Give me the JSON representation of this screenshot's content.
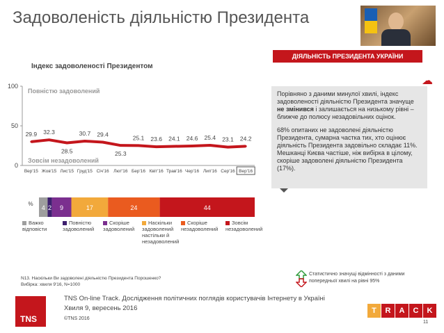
{
  "title": "Задоволеність діяльністю Президента",
  "banner": "ДІЯЛЬНІСТЬ ПРЕЗИДЕНТА УКРАЇНИ",
  "chart_data": [
    {
      "type": "line",
      "title": "Індекс задоволеності Президентом",
      "top_label": "Повністю задоволений",
      "bottom_label": "Зовсім незадоволений",
      "ylim": [
        0,
        100
      ],
      "yticks": [
        "100",
        "50",
        "0"
      ],
      "categories": [
        "Вер'15",
        "Жов'15",
        "Лис'15",
        "Груд'15",
        "Січ'16",
        "Лют'16",
        "Бер'16",
        "Квіт'16",
        "Трав'16",
        "Чер'16",
        "Лип'16",
        "Сер'16",
        "Вер'16"
      ],
      "values": [
        29.9,
        32.3,
        28.5,
        30.7,
        29.4,
        25.3,
        25.1,
        23.6,
        24.1,
        24.6,
        25.4,
        23.1,
        24.2
      ],
      "labels": [
        "29.9",
        "32.3",
        "28.5",
        "30.7",
        "29.4",
        "25.3",
        "25.1",
        "23.6",
        "24.1",
        "24.6",
        "25.4",
        "23.1",
        "24.2"
      ],
      "highlight_category": "Вер'16",
      "line_color": "#c4161c"
    },
    {
      "type": "bar",
      "unit": "%",
      "segments": [
        {
          "name": "Важко відповісти",
          "value": 4,
          "label": "4",
          "color": "#9e9e9e"
        },
        {
          "name": "Повністю задоволений",
          "value": 2,
          "label": "2",
          "color": "#3d1f6e"
        },
        {
          "name": "Скоріше задоволений",
          "value": 9,
          "label": "9",
          "color": "#7b2f8f"
        },
        {
          "name": "Наскільки задоволений настільки й незадоволений",
          "value": 17,
          "label": "17",
          "color": "#f2a93b"
        },
        {
          "name": "Скоріше незадоволений",
          "value": 24,
          "label": "24",
          "color": "#ea5b1f"
        },
        {
          "name": "Зовсім незадоволений",
          "value": 44,
          "label": "44",
          "color": "#c4161c"
        }
      ]
    }
  ],
  "legend": [
    "Важко відповісти",
    "Повністю задоволений",
    "Скоріше задоволений",
    "Наскільки задоволений настільки й незадоволений",
    "Скоріше незадоволений",
    "Зовсім незадоволений"
  ],
  "side_p1": "Порівняно з даними минулої хвилі, індекс задоволеності діяльністю Президента значуще не змінився і залишається на низькому рівні – ближче до полюсу незадовільних оцінок.",
  "side_p2": "68% опитаних не задоволені діяльністю Президента, сумарна частка тих, хто оцінює діяльність Президента задовільно складає 11%.",
  "side_p3": "Мешканці Києва частіше, ніж вибірка в цілому, скоріше задоволені діяльністю Президента (17%).",
  "question": "N13. Наскільки Ви задоволені діяльністю Президента Порошенко?",
  "sample": "Вибірка: хвиля 9'16, N=1000",
  "note": "Статистично значущі відмінності з даними попередньої хвилі на рівні 95%",
  "footer1": "TNS On-line Track. Дослідження політичних поглядів користувачів Інтернету в Україні",
  "footer2": "Хвиля 9, вересень 2016",
  "footer3": "©TNS 2016",
  "logo": "TNS",
  "track_letters": [
    "T",
    "R",
    "A",
    "C",
    "K"
  ],
  "track_colors": [
    "#f2a93b",
    "#c4161c",
    "#c4161c",
    "#c4161c",
    "#c4161c"
  ],
  "page": "11"
}
